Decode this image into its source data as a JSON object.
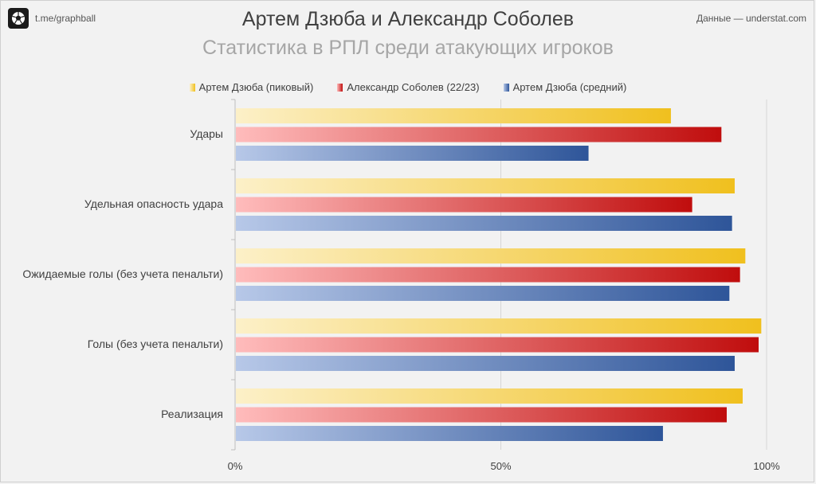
{
  "header": {
    "link": "t.me/graphball",
    "source": "Данные — understat.com"
  },
  "chart_data": {
    "type": "bar",
    "orientation": "horizontal",
    "title": "Артем Дзюба и Александр Соболев",
    "subtitle": "Статистика в РПЛ среди атакующих игроков",
    "categories": [
      "Удары",
      "Удельная опасность удара",
      "Ожидаемые голы (без учета пенальти)",
      "Голы (без учета пенальти)",
      "Реализация"
    ],
    "series": [
      {
        "name": "Артем Дзюба (пиковый)",
        "color_start": "#fcf0c8",
        "color_end": "#f0c01e",
        "values": [
          82,
          94,
          96,
          99,
          95.5
        ]
      },
      {
        "name": "Александр Соболев (22/23)",
        "color_start": "#ffbcbc",
        "color_end": "#c00d0d",
        "values": [
          91.5,
          86,
          95,
          98.5,
          92.5
        ]
      },
      {
        "name": "Артем Дзюба (средний)",
        "color_start": "#b7c8e8",
        "color_end": "#2e5599",
        "values": [
          66.5,
          93.5,
          93,
          94,
          80.5
        ]
      }
    ],
    "xlim": [
      0,
      100
    ],
    "x_ticks": [
      "0%",
      "50%",
      "100%"
    ],
    "grid": true,
    "legend_position": "top"
  }
}
